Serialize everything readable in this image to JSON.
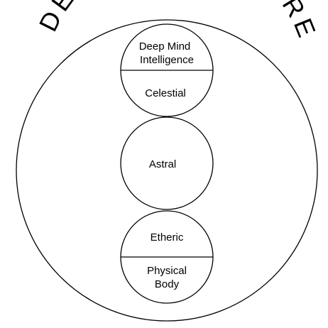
{
  "title": "DEEP MIND SPHERE",
  "spheres": [
    {
      "lines": [
        "Deep Mind",
        "Intelligence"
      ],
      "lower_lines": [
        "Celestial"
      ]
    },
    {
      "lines": [
        "Astral"
      ]
    },
    {
      "lines": [
        "Etheric"
      ],
      "lower_lines": [
        "Physical",
        "Body"
      ]
    }
  ]
}
